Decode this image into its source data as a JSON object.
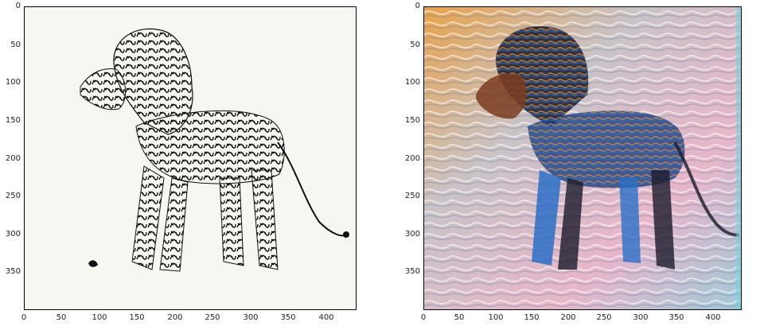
{
  "panels": [
    {
      "name": "left-calligraphy-lion",
      "description_image": "black calligraphic lion on white",
      "y_ticks": [
        "0",
        "50",
        "100",
        "150",
        "200",
        "250",
        "300",
        "350"
      ],
      "x_ticks": [
        "0",
        "50",
        "100",
        "150",
        "200",
        "250",
        "300",
        "350",
        "400"
      ]
    },
    {
      "name": "right-stylized-lion",
      "description_image": "colorful style-transfer lion",
      "y_ticks": [
        "0",
        "50",
        "100",
        "150",
        "200",
        "250",
        "300",
        "350"
      ],
      "x_ticks": [
        "0",
        "50",
        "100",
        "150",
        "200",
        "250",
        "300",
        "350",
        "400"
      ]
    }
  ],
  "colors": {
    "left_bg": "#f7f6f0",
    "ink": "#111111",
    "right_base": "#c7c6c9",
    "accent_blue": "#2b6fc7",
    "accent_orange": "#e8a24a",
    "accent_pink": "#e7b6c9",
    "accent_dark": "#1a1a2a"
  }
}
